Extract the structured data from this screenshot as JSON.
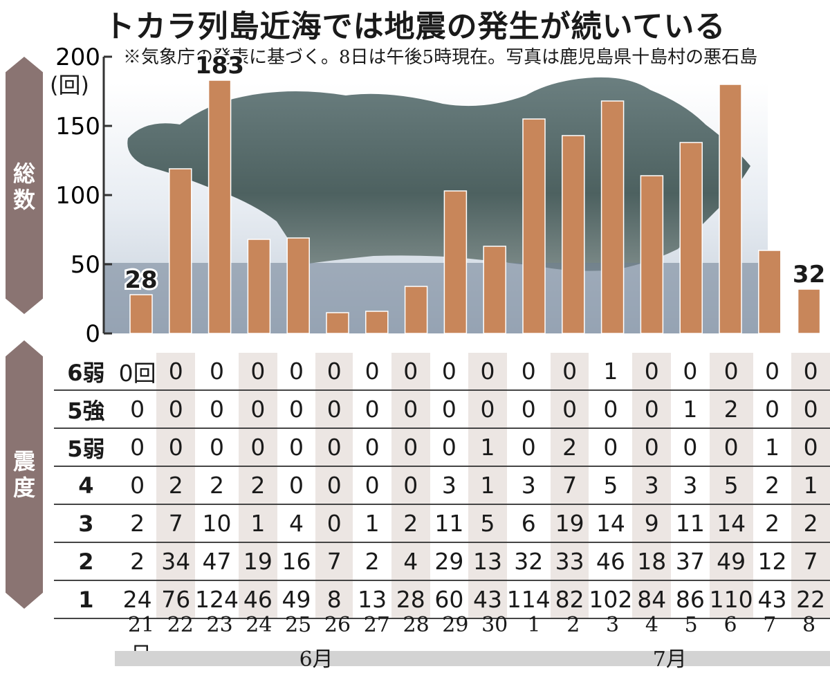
{
  "title": "トカラ列島近海では地震の発生が続いている",
  "note": "※気象庁の発表に基づく。8日は午後5時現在。写真は鹿児島県十島村の悪石島",
  "labels": {
    "total": "総数",
    "intensity": "震度",
    "unit": "(回)"
  },
  "chart_data": {
    "type": "bar",
    "title": "トカラ列島近海では地震の発生が続いている",
    "ylabel": "総数",
    "ylim": [
      0,
      200
    ],
    "yticks": [
      0,
      50,
      100,
      150,
      200
    ],
    "categories": [
      "21日",
      "22",
      "23",
      "24",
      "25",
      "26",
      "27",
      "28",
      "29",
      "30",
      "1",
      "2",
      "3",
      "4",
      "5",
      "6",
      "7",
      "8"
    ],
    "values": [
      28,
      119,
      183,
      68,
      69,
      15,
      16,
      34,
      103,
      63,
      155,
      143,
      168,
      114,
      138,
      180,
      60,
      32
    ],
    "data_labels": [
      {
        "index": 0,
        "text": "28"
      },
      {
        "index": 2,
        "text": "183"
      },
      {
        "index": 17,
        "text": "32"
      }
    ],
    "months": [
      {
        "label": "6月",
        "from": 0,
        "to": 9
      },
      {
        "label": "7月",
        "from": 10,
        "to": 17
      }
    ],
    "bar_color": "#c8865a"
  },
  "intensity_table": {
    "rows": [
      {
        "label": "6弱",
        "values": [
          "0回",
          "0",
          "0",
          "0",
          "0",
          "0",
          "0",
          "0",
          "0",
          "0",
          "0",
          "0",
          "1",
          "0",
          "0",
          "0",
          "0",
          "0"
        ]
      },
      {
        "label": "5強",
        "values": [
          "0",
          "0",
          "0",
          "0",
          "0",
          "0",
          "0",
          "0",
          "0",
          "0",
          "0",
          "0",
          "0",
          "0",
          "1",
          "2",
          "0",
          "0"
        ]
      },
      {
        "label": "5弱",
        "values": [
          "0",
          "0",
          "0",
          "0",
          "0",
          "0",
          "0",
          "0",
          "0",
          "1",
          "0",
          "2",
          "0",
          "0",
          "0",
          "0",
          "1",
          "0"
        ]
      },
      {
        "label": "4",
        "values": [
          "0",
          "2",
          "2",
          "2",
          "0",
          "0",
          "0",
          "0",
          "3",
          "1",
          "3",
          "7",
          "5",
          "3",
          "3",
          "5",
          "2",
          "1"
        ]
      },
      {
        "label": "3",
        "values": [
          "2",
          "7",
          "10",
          "1",
          "4",
          "0",
          "1",
          "2",
          "11",
          "5",
          "6",
          "19",
          "14",
          "9",
          "11",
          "14",
          "2",
          "2"
        ]
      },
      {
        "label": "2",
        "values": [
          "2",
          "34",
          "47",
          "19",
          "16",
          "7",
          "2",
          "4",
          "29",
          "13",
          "32",
          "33",
          "46",
          "18",
          "37",
          "49",
          "12",
          "7"
        ]
      },
      {
        "label": "1",
        "values": [
          "24",
          "76",
          "124",
          "46",
          "49",
          "8",
          "13",
          "28",
          "60",
          "43",
          "114",
          "82",
          "102",
          "84",
          "86",
          "110",
          "43",
          "22"
        ]
      }
    ]
  }
}
